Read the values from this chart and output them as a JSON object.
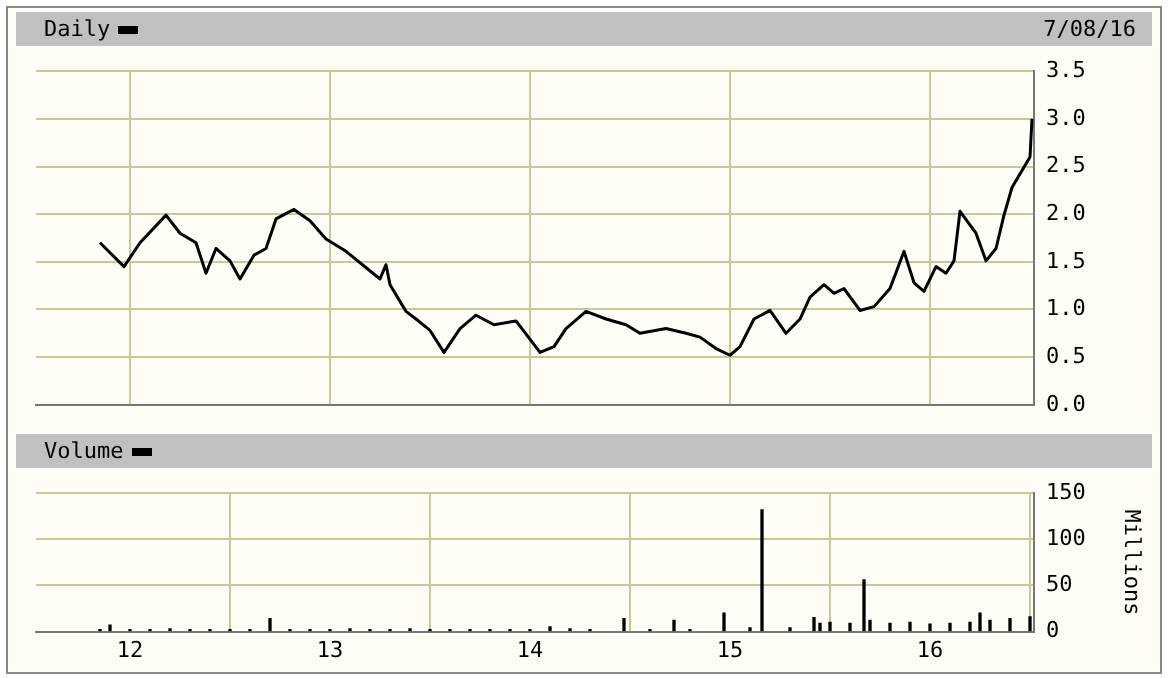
{
  "chart_data": [
    {
      "type": "line",
      "title": "Daily",
      "annotations": [
        "7/08/16"
      ],
      "x": [
        2011.85,
        2011.97,
        2012.05,
        2012.18,
        2012.25,
        2012.33,
        2012.38,
        2012.43,
        2012.5,
        2012.55,
        2012.62,
        2012.68,
        2012.73,
        2012.82,
        2012.9,
        2012.98,
        2013.08,
        2013.25,
        2013.28,
        2013.3,
        2013.38,
        2013.43,
        2013.5,
        2013.57,
        2013.65,
        2013.73,
        2013.82,
        2013.93,
        2014.05,
        2014.12,
        2014.18,
        2014.28,
        2014.38,
        2014.48,
        2014.55,
        2014.68,
        2014.78,
        2014.85,
        2014.93,
        2015.0,
        2015.05,
        2015.12,
        2015.2,
        2015.28,
        2015.35,
        2015.4,
        2015.47,
        2015.52,
        2015.57,
        2015.65,
        2015.72,
        2015.8,
        2015.87,
        2015.92,
        2015.97,
        2016.03,
        2016.08,
        2016.12,
        2016.15,
        2016.23,
        2016.28,
        2016.33,
        2016.37,
        2016.41,
        2016.5,
        2016.51
      ],
      "series": [
        {
          "color": "#000000",
          "values": [
            1.7,
            1.45,
            1.7,
            1.99,
            1.8,
            1.7,
            1.38,
            1.64,
            1.51,
            1.32,
            1.57,
            1.64,
            1.95,
            2.05,
            1.93,
            1.74,
            1.61,
            1.32,
            1.47,
            1.26,
            0.98,
            0.9,
            0.78,
            0.55,
            0.8,
            0.94,
            0.84,
            0.88,
            0.55,
            0.61,
            0.8,
            0.98,
            0.9,
            0.84,
            0.75,
            0.8,
            0.75,
            0.71,
            0.59,
            0.52,
            0.61,
            0.9,
            0.99,
            0.75,
            0.9,
            1.13,
            1.26,
            1.17,
            1.22,
            0.99,
            1.03,
            1.22,
            1.61,
            1.28,
            1.19,
            1.45,
            1.38,
            1.51,
            2.03,
            1.8,
            1.51,
            1.64,
            1.99,
            2.28,
            2.6,
            3.0
          ]
        }
      ],
      "xlim": [
        2011.53,
        2016.52
      ],
      "xticks": [
        {
          "value": 2012,
          "label": null
        },
        {
          "value": 2013,
          "label": null
        },
        {
          "value": 2014,
          "label": null
        },
        {
          "value": 2015,
          "label": null
        },
        {
          "value": 2016,
          "label": null
        }
      ],
      "ylim": [
        0,
        3.5
      ],
      "yticks": [
        {
          "value": 0,
          "label": "0.0"
        },
        {
          "value": 0.5,
          "label": "0.5"
        },
        {
          "value": 1,
          "label": "1.0"
        },
        {
          "value": 1.5,
          "label": "1.5"
        },
        {
          "value": 2,
          "label": "2.0"
        },
        {
          "value": 2.5,
          "label": "2.5"
        },
        {
          "value": 3,
          "label": "3.0"
        },
        {
          "value": 3.5,
          "label": "3.5"
        }
      ],
      "grid": true,
      "tick_labels": "y"
    },
    {
      "type": "bar",
      "title": "Volume",
      "ylabel": "Millions",
      "x": [
        2011.85,
        2011.9,
        2012.0,
        2012.1,
        2012.2,
        2012.3,
        2012.4,
        2012.5,
        2012.6,
        2012.7,
        2012.8,
        2012.9,
        2013.0,
        2013.1,
        2013.2,
        2013.3,
        2013.4,
        2013.5,
        2013.6,
        2013.7,
        2013.8,
        2013.9,
        2014.0,
        2014.1,
        2014.2,
        2014.3,
        2014.47,
        2014.6,
        2014.72,
        2014.8,
        2014.97,
        2015.1,
        2015.16,
        2015.3,
        2015.42,
        2015.45,
        2015.5,
        2015.6,
        2015.67,
        2015.7,
        2015.8,
        2015.9,
        2016.0,
        2016.1,
        2016.2,
        2016.25,
        2016.3,
        2016.4,
        2016.5
      ],
      "series": [
        {
          "color": "#000000",
          "values": [
            2,
            7,
            2,
            2,
            3,
            2,
            2,
            2,
            2,
            14,
            2,
            2,
            2,
            3,
            2,
            2,
            3,
            2,
            2,
            2,
            2,
            2,
            2,
            5,
            3,
            2,
            14,
            2,
            12,
            2,
            20,
            4,
            132,
            4,
            15,
            9,
            10,
            9,
            56,
            12,
            9,
            10,
            8,
            9,
            10,
            20,
            12,
            14,
            16
          ]
        }
      ],
      "xlim": [
        2011.53,
        2016.52
      ],
      "xticks": [
        {
          "value": 2012,
          "label": "12"
        },
        {
          "value": 2013,
          "label": "13"
        },
        {
          "value": 2014,
          "label": "14"
        },
        {
          "value": 2015,
          "label": "15"
        },
        {
          "value": 2016,
          "label": "16"
        }
      ],
      "ylim": [
        0,
        150
      ],
      "yticks": [
        0,
        50,
        100,
        150
      ],
      "grid": true
    }
  ]
}
